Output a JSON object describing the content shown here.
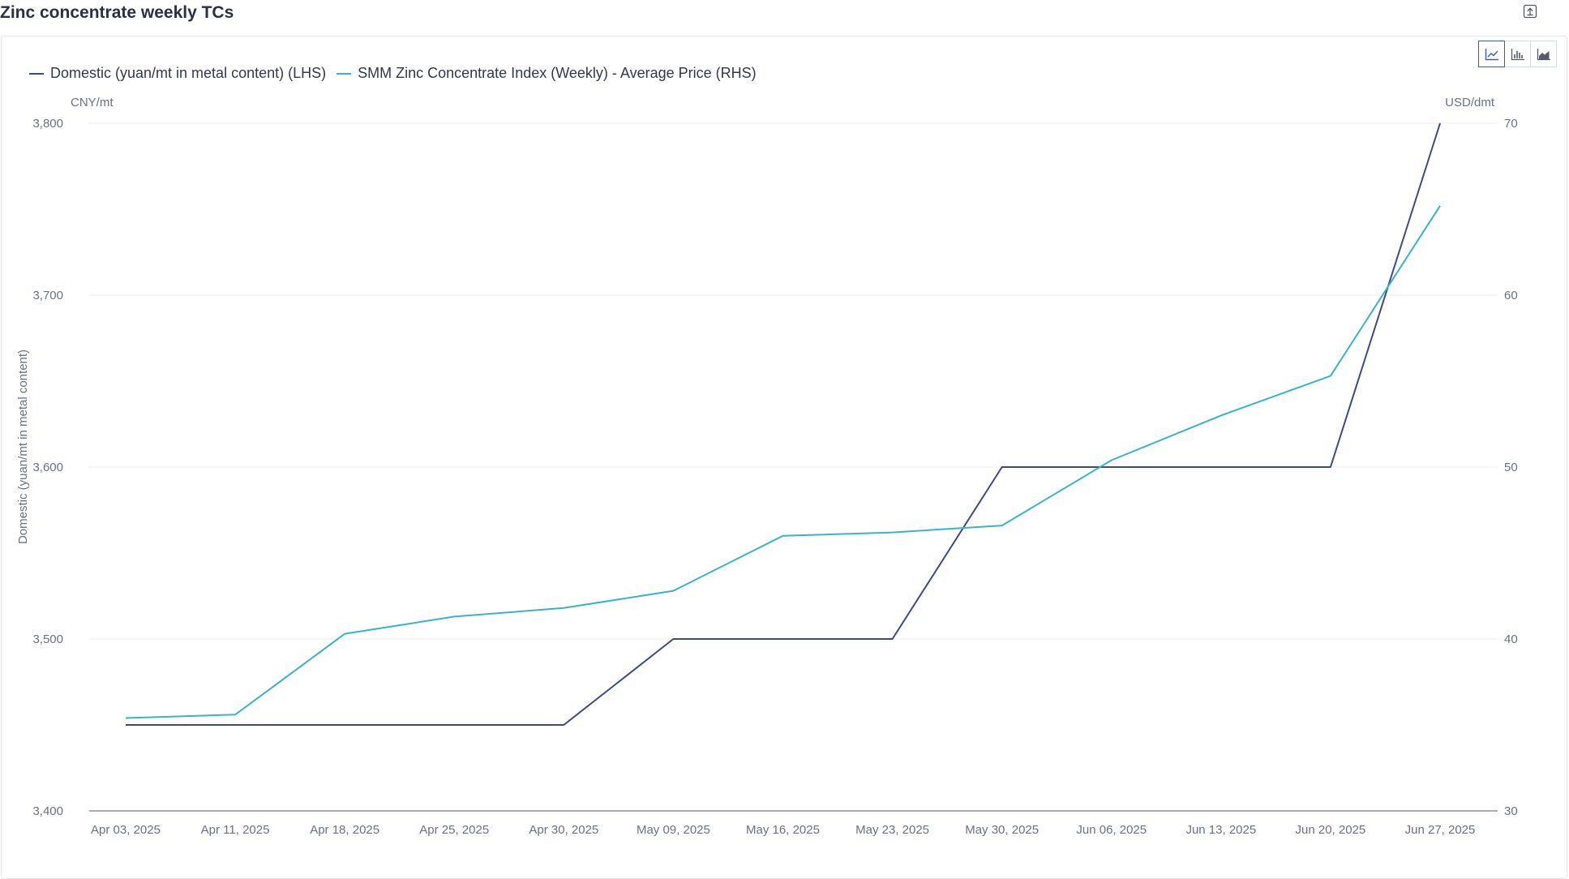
{
  "header": {
    "title": "Zinc concentrate weekly TCs"
  },
  "toolbar": {
    "export_icon": "export-icon",
    "chart_types": [
      "line-chart-icon",
      "bar-chart-icon",
      "area-chart-icon"
    ],
    "active_chart_type": 0
  },
  "colors": {
    "domestic": "#3d4a8a",
    "smm_index": "#3ab3c9",
    "grid": "#ececef",
    "axis": "#7a7f8c"
  },
  "chart_data": {
    "type": "line",
    "title": "Zinc concentrate weekly TCs",
    "x": [
      "Apr 03, 2025",
      "Apr 11, 2025",
      "Apr 18, 2025",
      "Apr 25, 2025",
      "Apr 30, 2025",
      "May 09, 2025",
      "May 16, 2025",
      "May 23, 2025",
      "May 30, 2025",
      "Jun 06, 2025",
      "Jun 13, 2025",
      "Jun 20, 2025",
      "Jun 27, 2025"
    ],
    "series": [
      {
        "name": "Domestic (yuan/mt in metal content) (LHS)",
        "axis": "left",
        "values": [
          3450,
          3450,
          3450,
          3450,
          3450,
          3500,
          3500,
          3500,
          3600,
          3600,
          3600,
          3600,
          3800
        ]
      },
      {
        "name": "SMM Zinc Concentrate Index (Weekly) - Average Price (RHS)",
        "axis": "right",
        "values": [
          35.4,
          35.6,
          40.3,
          41.3,
          41.8,
          42.8,
          46.0,
          46.2,
          46.6,
          50.4,
          53.0,
          55.3,
          65.2
        ]
      }
    ],
    "y_left": {
      "label": "Domestic (yuan/mt in metal content)",
      "unit": "CNY/mt",
      "range": [
        3400,
        3800
      ],
      "ticks": [
        "3,400",
        "3,500",
        "3,600",
        "3,700",
        "3,800"
      ]
    },
    "y_right": {
      "unit": "USD/dmt",
      "range": [
        30,
        70
      ],
      "ticks": [
        "30",
        "40",
        "50",
        "60",
        "70"
      ]
    },
    "grid": true,
    "legend_position": "top-left"
  }
}
